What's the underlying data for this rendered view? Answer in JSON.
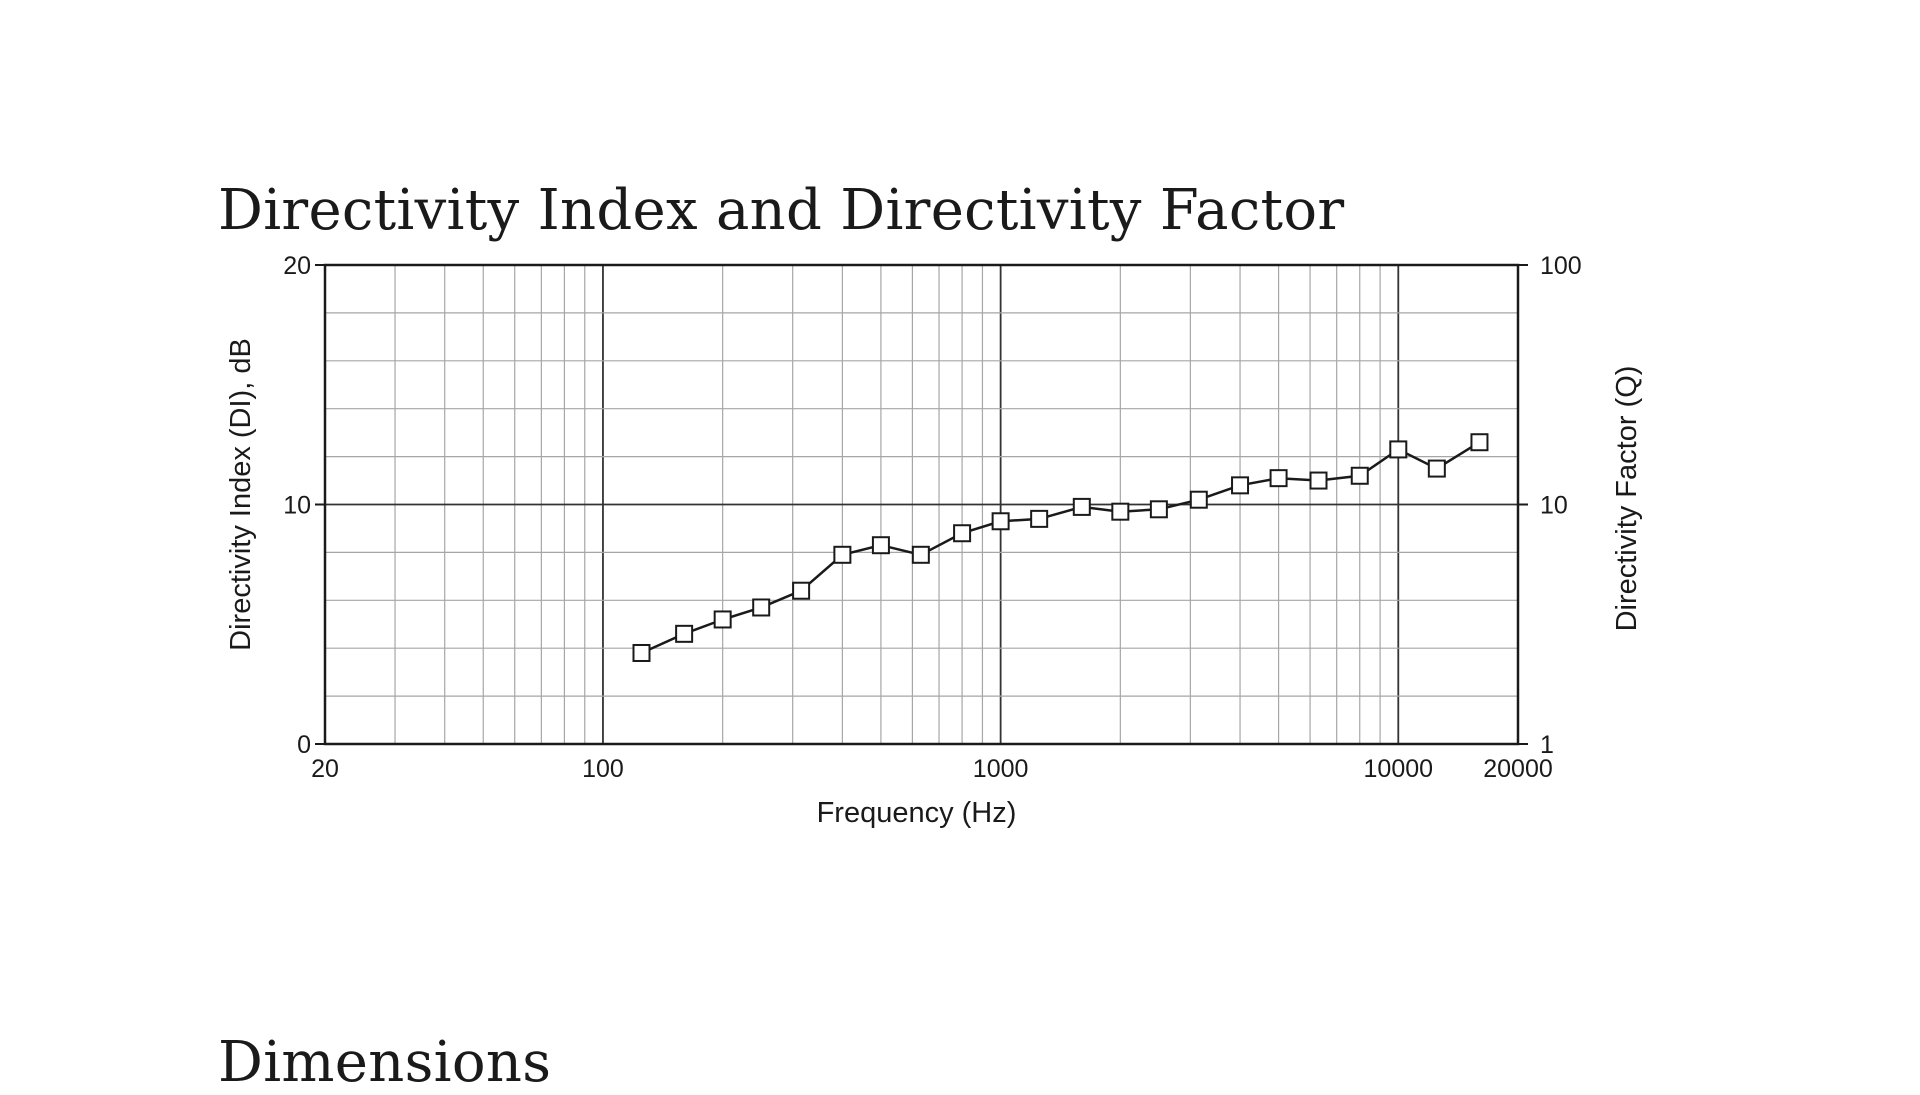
{
  "headings": {
    "chart_title": "Directivity Index and Directivity Factor",
    "next_section": "Dimensions"
  },
  "colors": {
    "line": "#1a1a1a",
    "major_grid": "#333333",
    "minor_grid": "#a6a6a6",
    "marker_fill": "#ffffff"
  },
  "chart_data": {
    "type": "line",
    "title": "Directivity Index and Directivity Factor",
    "xlabel": "Frequency (Hz)",
    "ylabel": "Directivity Index (DI), dB",
    "y2label": "Directivity Factor (Q)",
    "x_scale": "log",
    "xlim": [
      20,
      20000
    ],
    "ylim": [
      0,
      20
    ],
    "y2_scale": "log",
    "y2lim": [
      1,
      100
    ],
    "x_tick_labels": [
      "20",
      "100",
      "1000",
      "10000",
      "20000"
    ],
    "x_tick_values": [
      20,
      100,
      1000,
      10000,
      20000
    ],
    "y_tick_labels": [
      "0",
      "10",
      "20"
    ],
    "y_tick_values": [
      0,
      10,
      20
    ],
    "y2_tick_labels": [
      "1",
      "10",
      "100"
    ],
    "y2_tick_values": [
      1,
      10,
      100
    ],
    "grid": true,
    "marker": "square",
    "series": [
      {
        "x": [
          125,
          160,
          200,
          250,
          315,
          400,
          500,
          630,
          800,
          1000,
          1250,
          1600,
          2000,
          2500,
          3150,
          4000,
          5000,
          6300,
          8000,
          10000,
          12500,
          16000
        ],
        "values": [
          3.8,
          4.6,
          5.2,
          5.7,
          6.4,
          7.9,
          8.3,
          7.9,
          8.8,
          9.3,
          9.4,
          9.9,
          9.7,
          9.8,
          10.2,
          10.8,
          11.1,
          11.0,
          11.2,
          12.3,
          11.5,
          12.6
        ]
      }
    ]
  }
}
